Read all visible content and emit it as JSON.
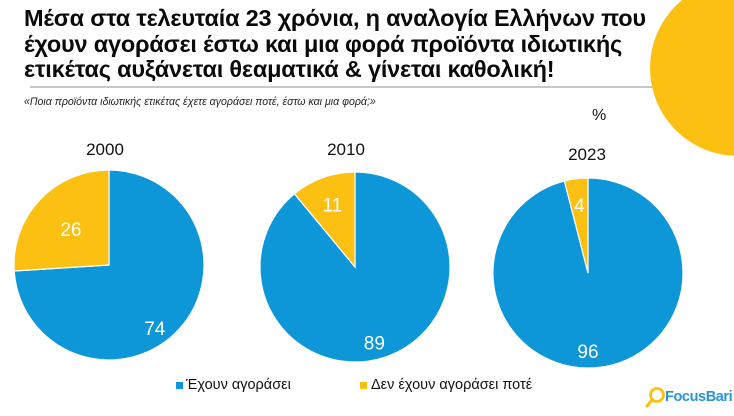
{
  "header": {
    "title": "Μέσα στα τελευταία 23 χρόνια, η αναλογία Ελλήνων που έχουν αγοράσει έστω και μια φορά προϊόντα ιδιωτικής ετικέτας αυξάνεται θεαματικά & γίνεται καθολική!",
    "subtitle": "«Ποια προϊόντα ιδιωτικής ετικέτας έχετε αγοράσει ποτέ, έστω και μια φορά;»",
    "unit": "%"
  },
  "colors": {
    "blue": "#0d97d9",
    "yellow": "#fbc012",
    "divider": "#c8c8c8",
    "logo_blue": "#2a93d5"
  },
  "legend": {
    "items": [
      {
        "label": "Έχουν αγοράσει",
        "color": "#0d97d9"
      },
      {
        "label": "Δεν έχουν αγοράσει ποτέ",
        "color": "#fbc012"
      }
    ]
  },
  "logo": {
    "text": "FocusBari"
  },
  "chart_data": [
    {
      "type": "pie",
      "title": "2000",
      "labels": [
        "Έχουν αγοράσει",
        "Δεν έχουν αγοράσει ποτέ"
      ],
      "values": [
        74,
        26
      ],
      "colors": [
        "#0d97d9",
        "#fbc012"
      ]
    },
    {
      "type": "pie",
      "title": "2010",
      "labels": [
        "Έχουν αγοράσει",
        "Δεν έχουν αγοράσει ποτέ"
      ],
      "values": [
        89,
        11
      ],
      "colors": [
        "#0d97d9",
        "#fbc012"
      ]
    },
    {
      "type": "pie",
      "title": "2023",
      "labels": [
        "Έχουν αγοράσει",
        "Δεν έχουν αγοράσει ποτέ"
      ],
      "values": [
        96,
        4
      ],
      "colors": [
        "#0d97d9",
        "#fbc012"
      ]
    }
  ]
}
